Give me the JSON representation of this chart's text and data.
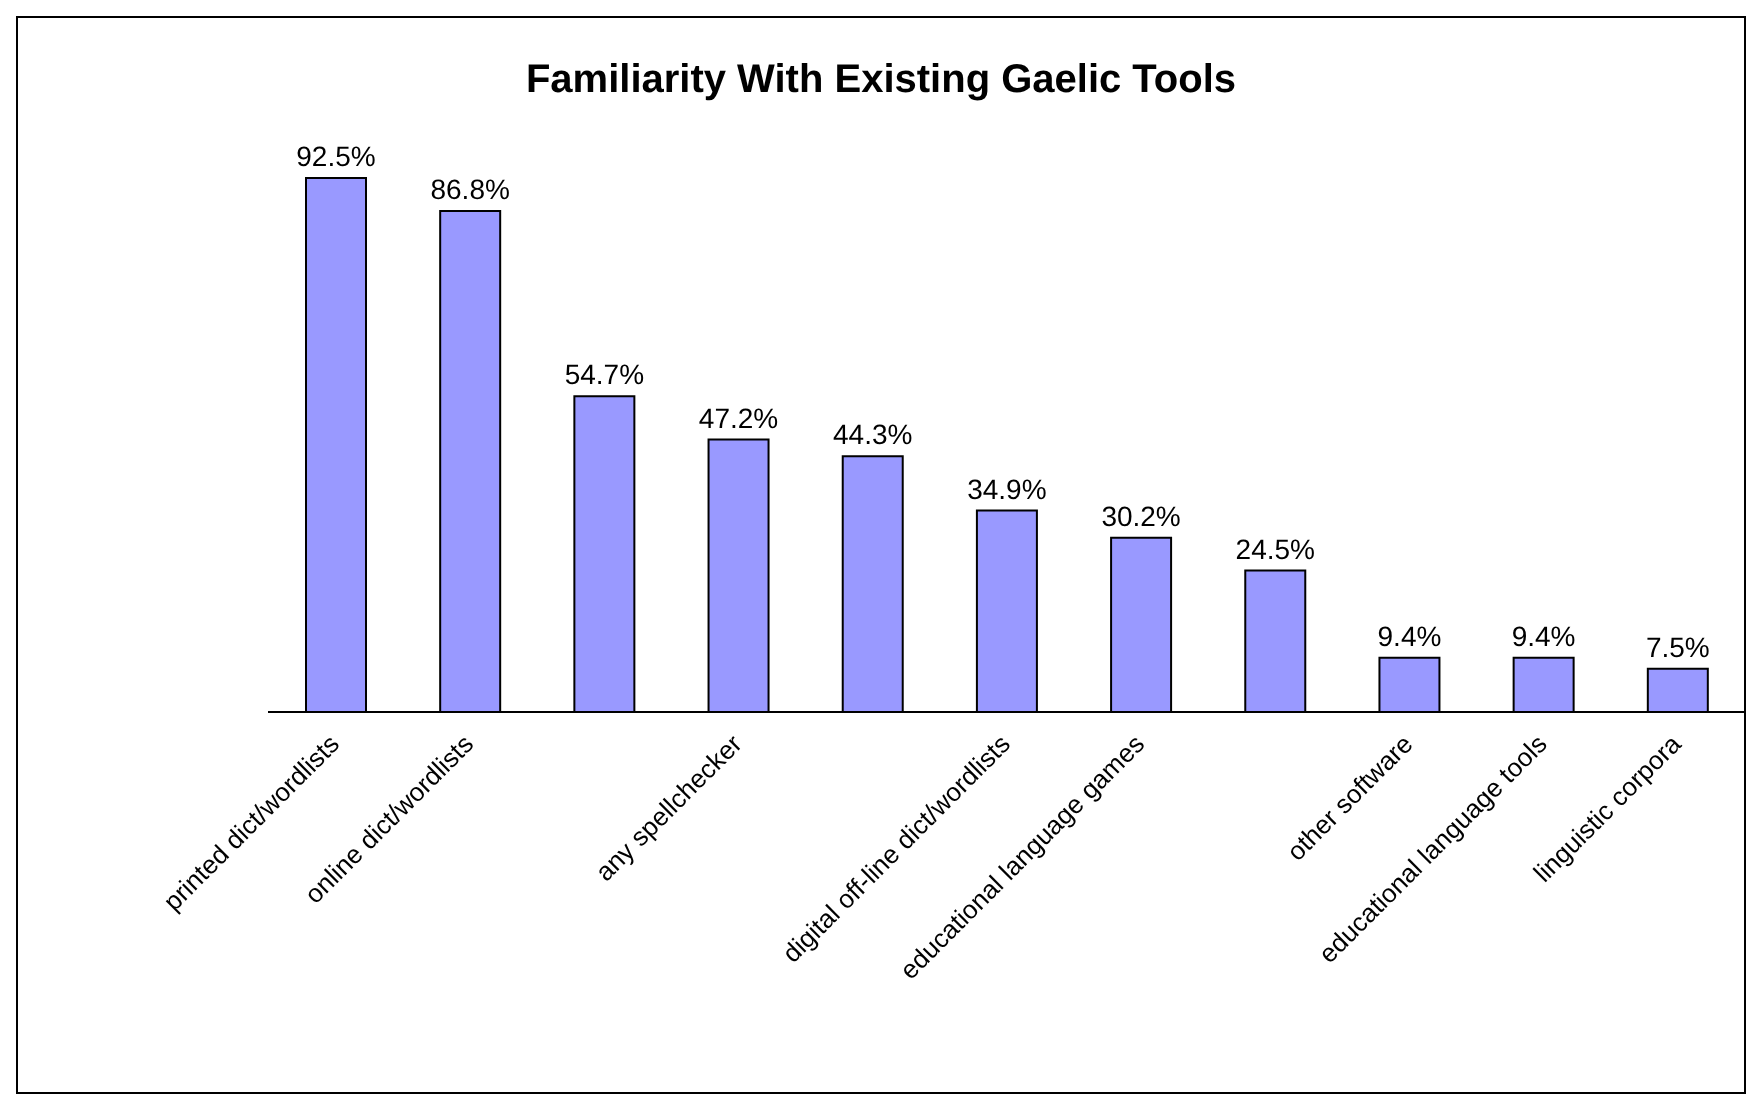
{
  "chart_data": {
    "type": "bar",
    "title": "Familiarity With Existing Gaelic Tools",
    "categories": [
      "printed dict/wordlists",
      "online dict/wordlists",
      null,
      "any spellchecker",
      null,
      "digital off-line dict/wordlists",
      "educational language games",
      null,
      "other software",
      "educational language tools",
      "linguistic corpora"
    ],
    "values": [
      92.5,
      86.8,
      54.7,
      47.2,
      44.3,
      34.9,
      30.2,
      24.5,
      9.4,
      9.4,
      7.5
    ],
    "value_labels": [
      "92.5%",
      "86.8%",
      "54.7%",
      "47.2%",
      "44.3%",
      "34.9%",
      "30.2%",
      "24.5%",
      "9.4%",
      "9.4%",
      "7.5%"
    ],
    "color": "#9999ff",
    "grid": false,
    "legend": false
  }
}
